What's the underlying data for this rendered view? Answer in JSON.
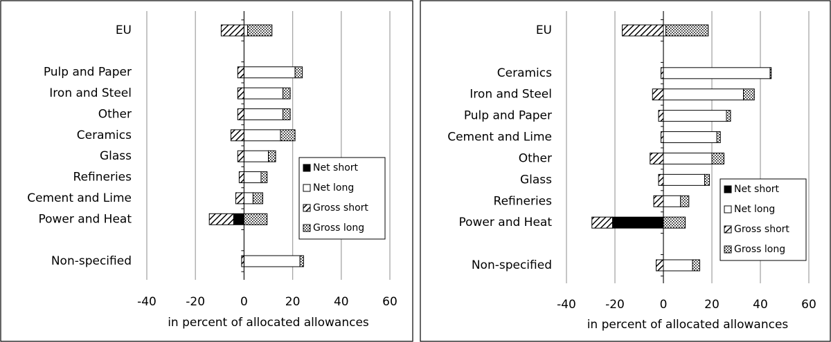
{
  "chart_data": [
    {
      "type": "bar",
      "orientation": "horizontal",
      "stacked": true,
      "categories": [
        "EU",
        null,
        "Pulp and Paper",
        "Iron and Steel",
        "Other",
        "Ceramics",
        "Glass",
        "Refineries",
        "Cement and Lime",
        "Power and Heat",
        null,
        "Non-specified"
      ],
      "series": [
        {
          "name": "Net short",
          "color": "#000000",
          "pattern": "solid",
          "values": [
            0,
            null,
            0,
            0,
            0,
            0,
            0,
            0,
            0,
            -4.3,
            null,
            0
          ]
        },
        {
          "name": "Net long",
          "color": "#ffffff",
          "pattern": "solid",
          "values": [
            1.5,
            null,
            21,
            16,
            16,
            15,
            10,
            7,
            3.7,
            0,
            null,
            23
          ]
        },
        {
          "name": "Gross short",
          "color": "#ffffff",
          "pattern": "hatch",
          "values": [
            -9.4,
            null,
            -2.6,
            -2.6,
            -2.6,
            -5.4,
            -2.6,
            -2,
            -3.4,
            -10,
            null,
            -1
          ]
        },
        {
          "name": "Gross long",
          "color": "#ffffff",
          "pattern": "dots",
          "values": [
            10,
            null,
            3,
            3,
            3,
            6,
            3,
            2.5,
            4,
            9.5,
            null,
            1.5
          ]
        }
      ],
      "xlim": [
        -40,
        60
      ],
      "xticks": [
        -40,
        -20,
        0,
        20,
        40,
        60
      ],
      "xlabel": "in percent of allocated allowances",
      "grid": true,
      "legend": "lower right"
    },
    {
      "type": "bar",
      "orientation": "horizontal",
      "stacked": true,
      "categories": [
        "EU",
        null,
        "Ceramics",
        "Iron and Steel",
        "Pulp and Paper",
        "Cement and Lime",
        "Other",
        "Glass",
        "Refineries",
        "Power and Heat",
        null,
        "Non-specified"
      ],
      "series": [
        {
          "name": "Net short",
          "color": "#000000",
          "pattern": "solid",
          "values": [
            0,
            null,
            0,
            0,
            0,
            0,
            0,
            0,
            0,
            -21,
            null,
            0
          ]
        },
        {
          "name": "Net long",
          "color": "#ffffff",
          "pattern": "solid",
          "values": [
            1,
            null,
            44,
            33,
            26,
            22,
            20,
            17,
            7,
            0,
            null,
            12
          ]
        },
        {
          "name": "Gross short",
          "color": "#ffffff",
          "pattern": "hatch",
          "values": [
            -17,
            null,
            -1,
            -4.5,
            -2,
            -1,
            -5.5,
            -2,
            -4,
            -8.5,
            null,
            -3
          ]
        },
        {
          "name": "Gross long",
          "color": "#ffffff",
          "pattern": "dots",
          "values": [
            17.5,
            null,
            0.5,
            4.5,
            1.7,
            1.5,
            5,
            2,
            3.5,
            9,
            null,
            3
          ]
        }
      ],
      "xlim": [
        -40,
        60
      ],
      "xticks": [
        -40,
        -20,
        0,
        20,
        40,
        60
      ],
      "xlabel": "in percent of allocated allowances",
      "grid": true,
      "legend": "lower right"
    }
  ]
}
